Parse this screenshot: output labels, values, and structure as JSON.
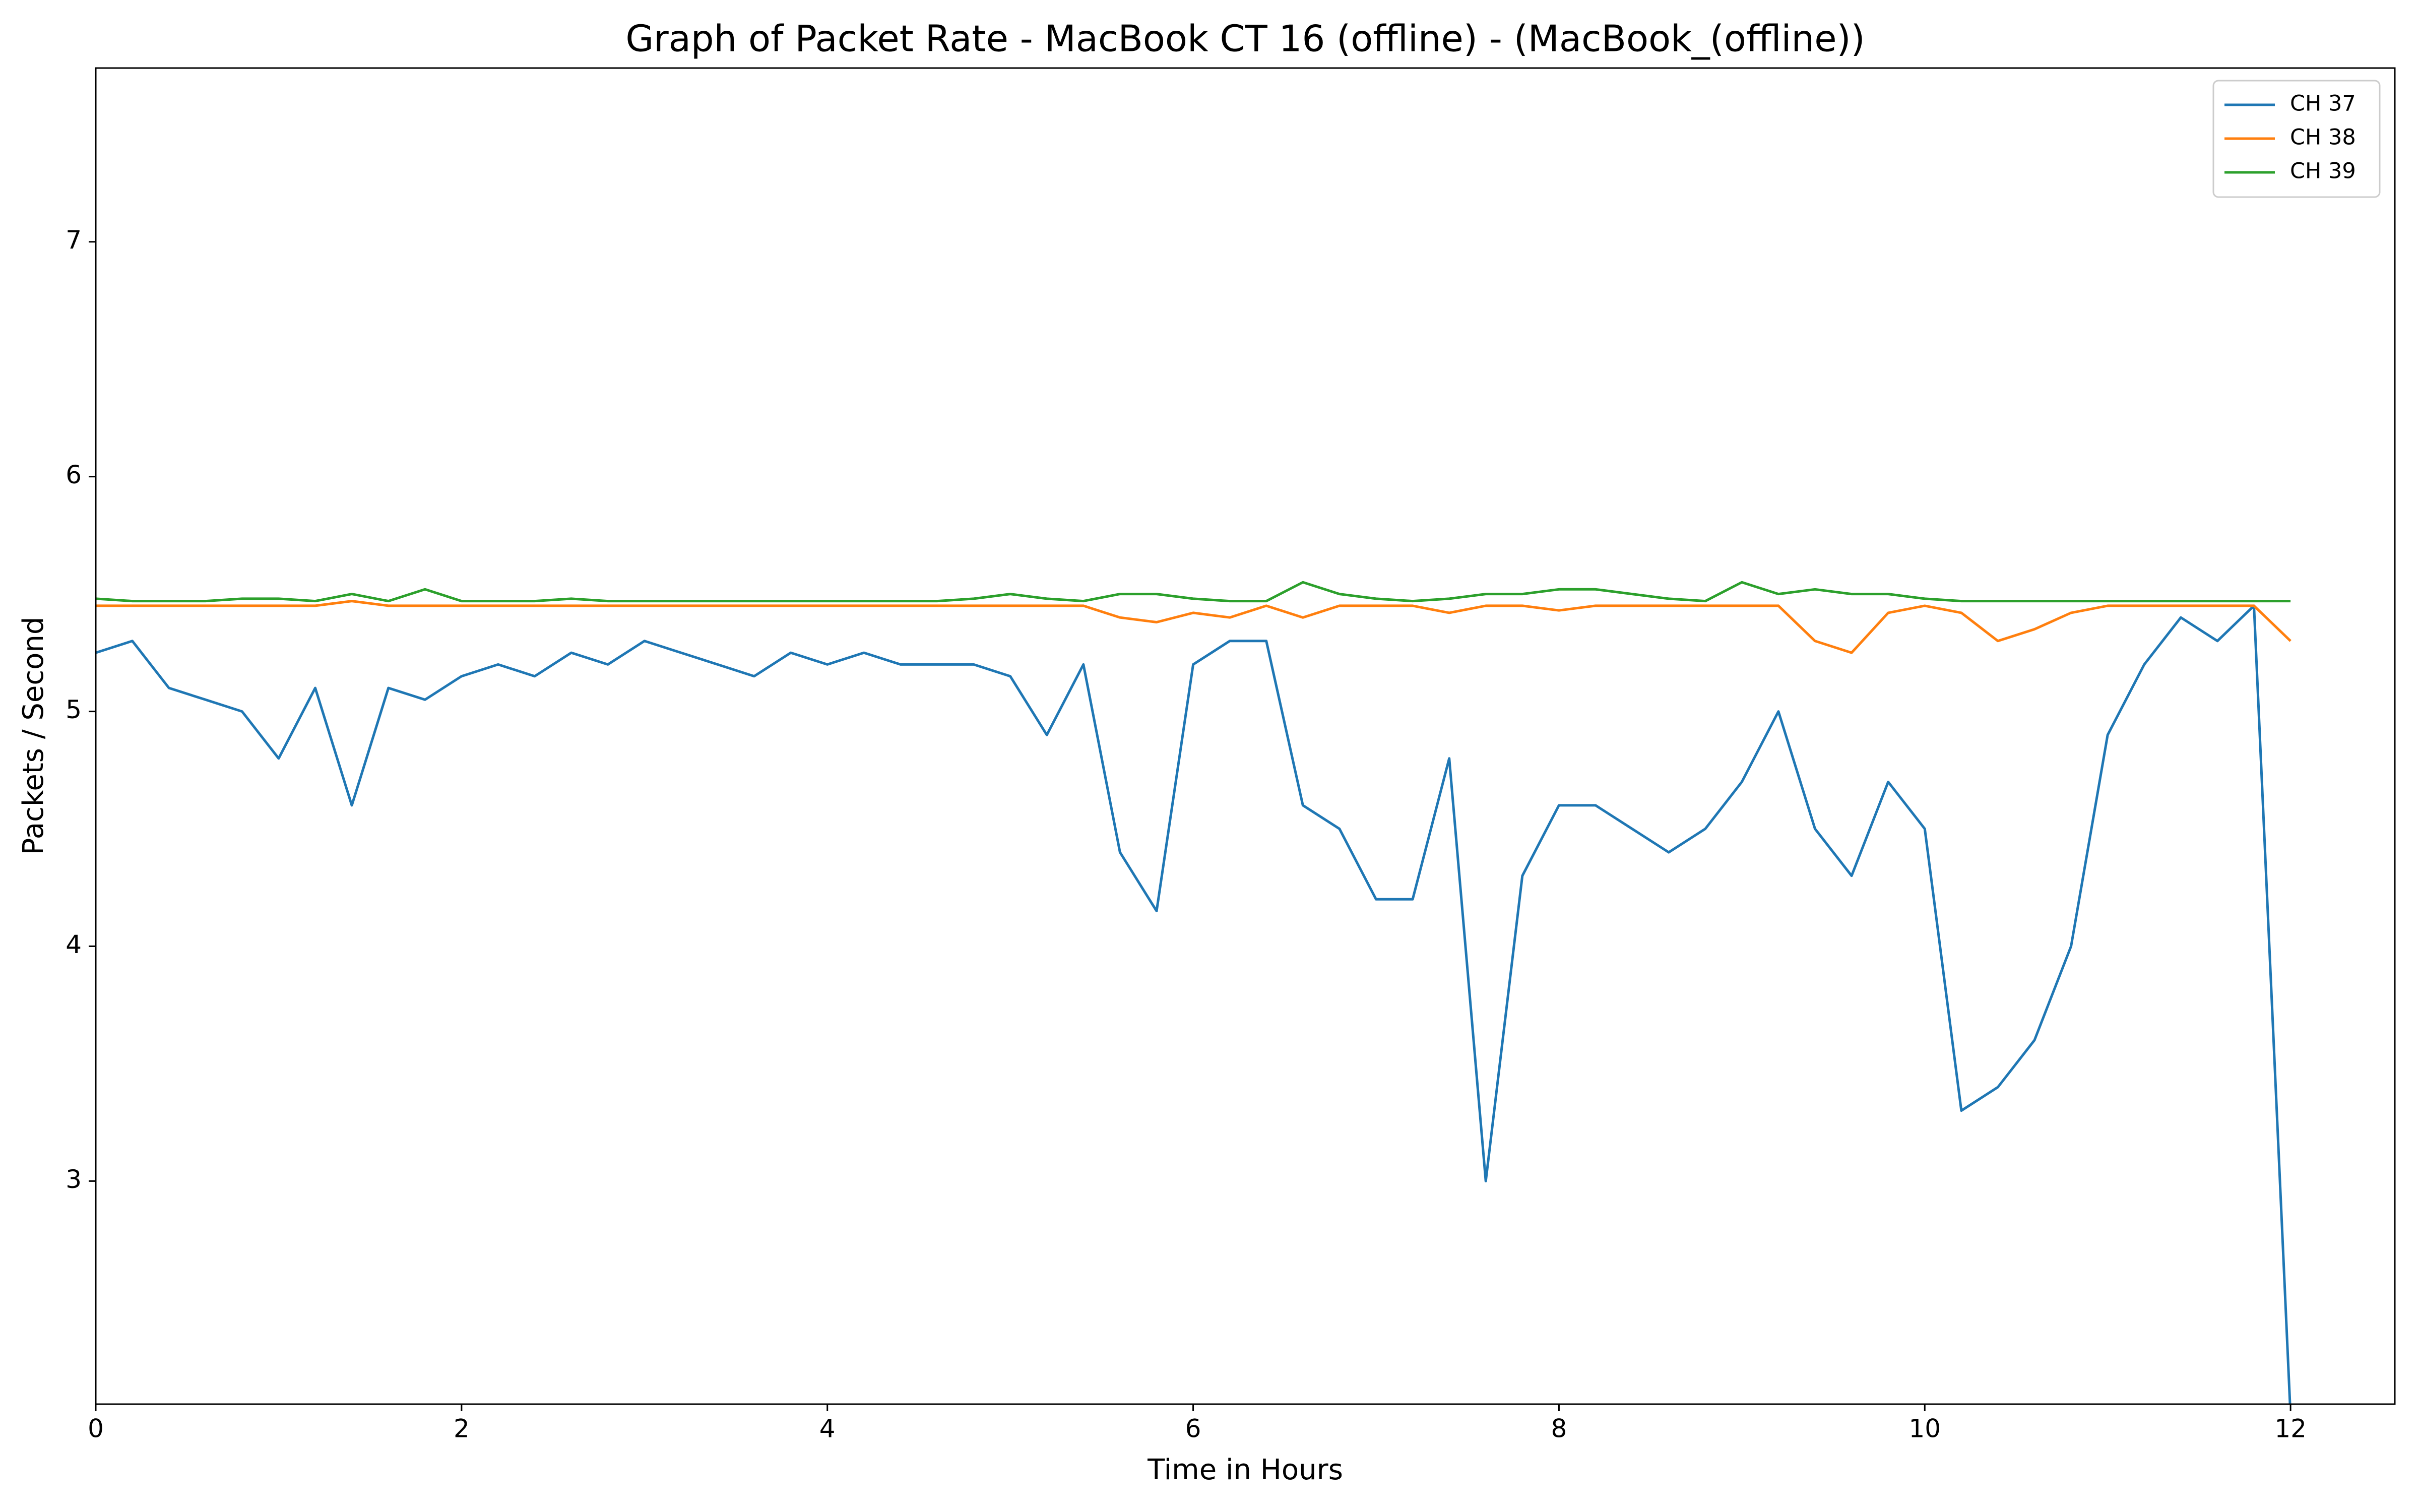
{
  "chart_data": {
    "type": "line",
    "title": "Graph of Packet Rate - MacBook CT 16 (offline) - (MacBook_(offline))",
    "x_label": "Time in Hours",
    "y_label": "Packets / Second",
    "x": [
      0,
      0.2,
      0.4,
      0.6,
      0.8,
      1.0,
      1.2,
      1.4,
      1.6,
      1.8,
      2.0,
      2.2,
      2.4,
      2.6,
      2.8,
      3.0,
      3.2,
      3.4,
      3.6,
      3.8,
      4.0,
      4.2,
      4.4,
      4.6,
      4.8,
      5.0,
      5.2,
      5.4,
      5.6,
      5.8,
      6.0,
      6.2,
      6.4,
      6.6,
      6.8,
      7.0,
      7.2,
      7.4,
      7.6,
      7.8,
      8.0,
      8.2,
      8.4,
      8.6,
      8.8,
      9.0,
      9.2,
      9.4,
      9.6,
      9.8,
      10.0,
      10.2,
      10.4,
      10.6,
      10.8,
      11.0,
      11.2,
      11.4,
      11.6,
      11.8,
      12.0
    ],
    "series": [
      {
        "name": "CH 37",
        "color": "#1f77b4",
        "values": [
          5.25,
          5.3,
          5.1,
          5.05,
          5.0,
          4.8,
          5.1,
          4.6,
          5.1,
          5.05,
          5.15,
          5.2,
          5.15,
          5.25,
          5.2,
          5.3,
          5.25,
          5.2,
          5.15,
          5.25,
          5.2,
          5.25,
          5.2,
          5.2,
          5.2,
          5.15,
          4.9,
          5.2,
          4.4,
          4.15,
          5.2,
          5.3,
          5.3,
          4.6,
          4.5,
          4.2,
          4.2,
          4.8,
          3.0,
          4.3,
          4.6,
          4.6,
          4.5,
          4.4,
          4.5,
          4.7,
          5.0,
          4.5,
          4.3,
          4.7,
          4.5,
          3.3,
          3.4,
          3.6,
          4.0,
          4.9,
          5.2,
          5.4,
          5.3,
          5.45,
          2.0
        ]
      },
      {
        "name": "CH 38",
        "color": "#ff7f0e",
        "values": [
          5.45,
          5.45,
          5.45,
          5.45,
          5.45,
          5.45,
          5.45,
          5.47,
          5.45,
          5.45,
          5.45,
          5.45,
          5.45,
          5.45,
          5.45,
          5.45,
          5.45,
          5.45,
          5.45,
          5.45,
          5.45,
          5.45,
          5.45,
          5.45,
          5.45,
          5.45,
          5.45,
          5.45,
          5.4,
          5.38,
          5.42,
          5.4,
          5.45,
          5.4,
          5.45,
          5.45,
          5.45,
          5.42,
          5.45,
          5.45,
          5.43,
          5.45,
          5.45,
          5.45,
          5.45,
          5.45,
          5.45,
          5.3,
          5.25,
          5.42,
          5.45,
          5.42,
          5.3,
          5.35,
          5.42,
          5.45,
          5.45,
          5.45,
          5.45,
          5.45,
          5.3
        ]
      },
      {
        "name": "CH 39",
        "color": "#2ca02c",
        "values": [
          5.48,
          5.47,
          5.47,
          5.47,
          5.48,
          5.48,
          5.47,
          5.5,
          5.47,
          5.52,
          5.47,
          5.47,
          5.47,
          5.48,
          5.47,
          5.47,
          5.47,
          5.47,
          5.47,
          5.47,
          5.47,
          5.47,
          5.47,
          5.47,
          5.48,
          5.5,
          5.48,
          5.47,
          5.5,
          5.5,
          5.48,
          5.47,
          5.47,
          5.55,
          5.5,
          5.48,
          5.47,
          5.48,
          5.5,
          5.5,
          5.52,
          5.52,
          5.5,
          5.48,
          5.47,
          5.55,
          5.5,
          5.52,
          5.5,
          5.5,
          5.48,
          5.47,
          5.47,
          5.47,
          5.47,
          5.47,
          5.47,
          5.47,
          5.47,
          5.47,
          5.47
        ]
      }
    ],
    "xlim": [
      0,
      12.57
    ],
    "ylim": [
      2.05,
      7.74
    ],
    "xticks": [
      0,
      2,
      4,
      6,
      8,
      10,
      12
    ],
    "yticks": [
      3,
      4,
      5,
      6,
      7
    ],
    "grid": false,
    "legend": "upper right"
  }
}
